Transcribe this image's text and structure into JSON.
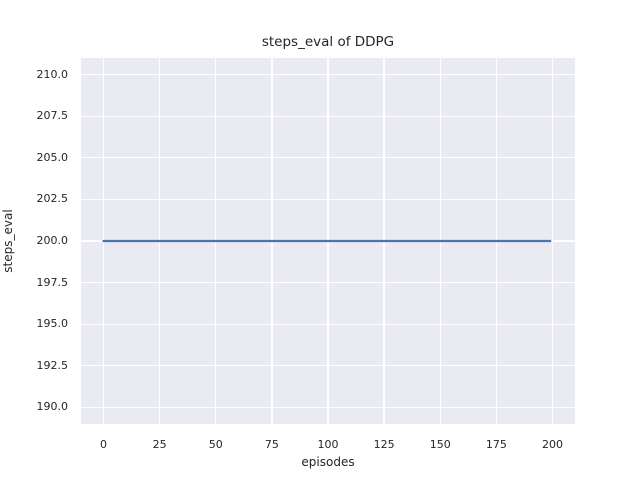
{
  "chart_data": {
    "type": "line",
    "title": "steps_eval of DDPG",
    "xlabel": "episodes",
    "ylabel": "steps_eval",
    "x_ticks": [
      0,
      25,
      50,
      75,
      100,
      125,
      150,
      175,
      200
    ],
    "y_ticks": [
      210.0,
      207.5,
      205.0,
      202.5,
      200.0,
      197.5,
      195.0,
      192.5,
      190.0
    ],
    "y_tick_decimals": 1,
    "xlim": [
      -10,
      210
    ],
    "ylim": [
      189,
      211
    ],
    "grid": true,
    "legend": null,
    "style": {
      "figure_bg": "#ffffff",
      "plot_bg": "#eaeaf2",
      "grid_color": "#ffffff",
      "line_color": "#4c72b0",
      "text_color": "#262626",
      "line_width": 2.2
    },
    "series": [
      {
        "name": "steps_eval",
        "x": [
          0,
          199
        ],
        "y": [
          200,
          200
        ]
      }
    ]
  }
}
